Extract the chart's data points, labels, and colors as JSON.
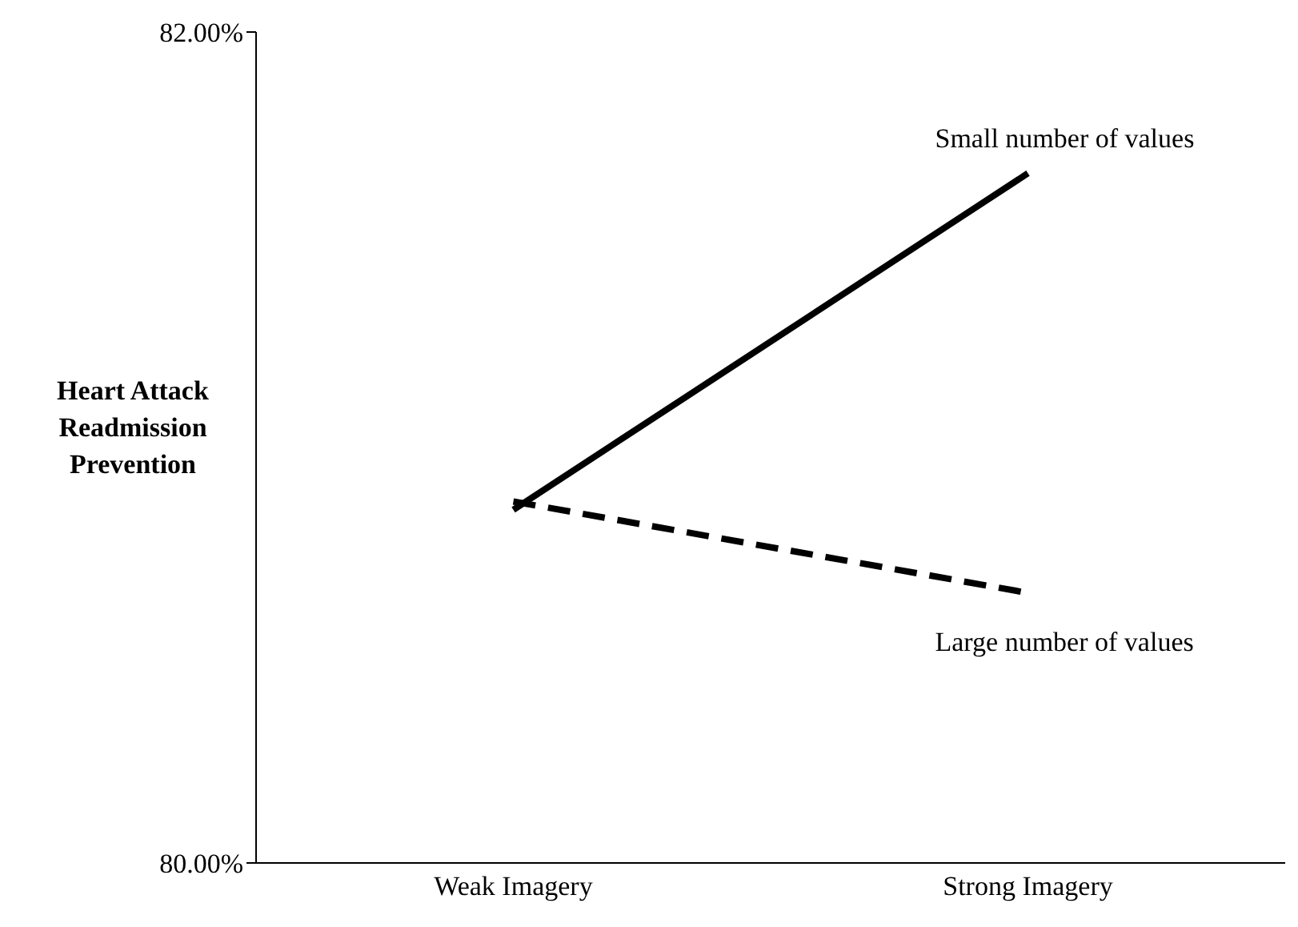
{
  "chart_data": {
    "type": "line",
    "ylabel": "Heart Attack Readmission Prevention",
    "categories": [
      "Weak Imagery",
      "Strong Imagery"
    ],
    "series": [
      {
        "name": "Small number of values",
        "color": "#000000",
        "line_style": "solid",
        "values": [
          80.85,
          81.66
        ]
      },
      {
        "name": "Large number of values",
        "color": "#000000",
        "line_style": "dashed",
        "values": [
          80.87,
          80.65
        ]
      }
    ],
    "ylim": [
      80,
      82
    ],
    "yticks": [
      {
        "value": 80,
        "label": "80.00%"
      },
      {
        "value": 82,
        "label": "82.00%"
      }
    ],
    "grid": false,
    "legend": false,
    "marker": "none"
  }
}
